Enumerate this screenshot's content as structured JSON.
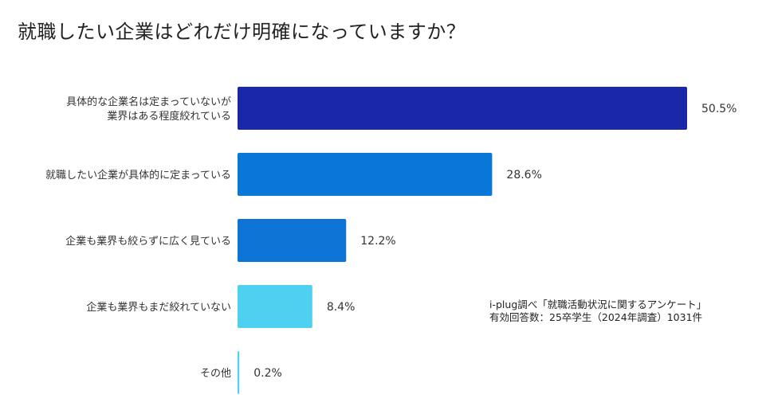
{
  "title": "就職したい企業はどれだけ明確になっていますか？",
  "source": {
    "line1": "i-plug調べ「就職活動状況に関するアンケート」",
    "line2": "有効回答数：25卒学生（2024年調査）1031件"
  },
  "chart_data": {
    "type": "bar",
    "orientation": "horizontal",
    "title": "就職したい企業はどれだけ明確になっていますか？",
    "xlabel": "",
    "ylabel": "",
    "unit": "%",
    "xlim": [
      0,
      50.5
    ],
    "categories": [
      [
        "具体的な企業名は定まっていないが",
        "業界はある程度絞れている"
      ],
      [
        "就職したい企業が具体的に定まっている"
      ],
      [
        "企業も業界も絞らずに広く見ている"
      ],
      [
        "企業も業界もまだ絞れていない"
      ],
      [
        "その他"
      ]
    ],
    "values": [
      50.5,
      28.6,
      12.2,
      8.4,
      0.2
    ],
    "value_labels": [
      "50.5%",
      "28.6%",
      "12.2%",
      "8.4%",
      "0.2%"
    ],
    "colors": [
      "#1a27a8",
      "#0977d8",
      "#0d74d6",
      "#4ed0f0",
      "#4ed0f0"
    ]
  }
}
